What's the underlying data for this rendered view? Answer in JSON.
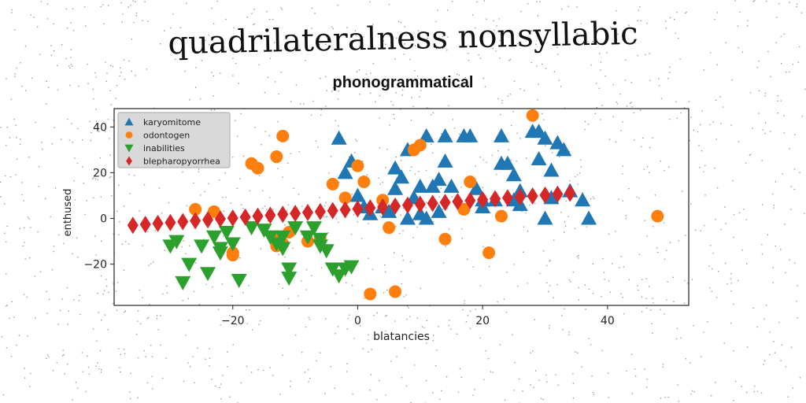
{
  "title": "quadrilateralness nonsyllabic",
  "subtitle": "phonogrammatical",
  "chart_data": {
    "type": "scatter",
    "xlabel": "blatancies",
    "ylabel": "enthused",
    "xlim": [
      -39,
      53
    ],
    "ylim": [
      -38,
      48
    ],
    "xticks": [
      -20,
      0,
      20,
      40
    ],
    "yticks": [
      -20,
      0,
      20,
      40
    ],
    "xtick_labels": [
      "−20",
      "0",
      "20",
      "40"
    ],
    "ytick_labels": [
      "−20",
      "0",
      "20",
      "40"
    ],
    "legend_position": "top-left",
    "grid": false,
    "series": [
      {
        "name": "karyomitome",
        "marker": "triangle-up",
        "color": "#1f77b4",
        "points": [
          [
            -3,
            35
          ],
          [
            -2,
            20
          ],
          [
            -1,
            25
          ],
          [
            0,
            10
          ],
          [
            1,
            5
          ],
          [
            2,
            2
          ],
          [
            4,
            5
          ],
          [
            5,
            3
          ],
          [
            6,
            22
          ],
          [
            6,
            13
          ],
          [
            7,
            18
          ],
          [
            8,
            30
          ],
          [
            8,
            0
          ],
          [
            9,
            9
          ],
          [
            10,
            14
          ],
          [
            10,
            2
          ],
          [
            11,
            36
          ],
          [
            11,
            0
          ],
          [
            12,
            14
          ],
          [
            13,
            17
          ],
          [
            13,
            3
          ],
          [
            14,
            25
          ],
          [
            14,
            36
          ],
          [
            15,
            14
          ],
          [
            17,
            36
          ],
          [
            18,
            36
          ],
          [
            19,
            13
          ],
          [
            20,
            8
          ],
          [
            20,
            5
          ],
          [
            22,
            8
          ],
          [
            23,
            36
          ],
          [
            23,
            24
          ],
          [
            24,
            24
          ],
          [
            25,
            8
          ],
          [
            25,
            19
          ],
          [
            26,
            12
          ],
          [
            26,
            6
          ],
          [
            28,
            38
          ],
          [
            29,
            38
          ],
          [
            29,
            26
          ],
          [
            30,
            0
          ],
          [
            30,
            35
          ],
          [
            31,
            21
          ],
          [
            31,
            9
          ],
          [
            32,
            33
          ],
          [
            33,
            30
          ],
          [
            34,
            12
          ],
          [
            36,
            8
          ],
          [
            37,
            0
          ]
        ]
      },
      {
        "name": "odontogen",
        "marker": "circle",
        "color": "#ff7f0e",
        "points": [
          [
            -26,
            4
          ],
          [
            -23,
            3
          ],
          [
            -20,
            -15
          ],
          [
            -20,
            -16
          ],
          [
            -17,
            24
          ],
          [
            -16,
            22
          ],
          [
            -13,
            -8
          ],
          [
            -13,
            -12
          ],
          [
            -13,
            27
          ],
          [
            -12,
            36
          ],
          [
            -12,
            -11
          ],
          [
            -11,
            -6
          ],
          [
            -8,
            -10
          ],
          [
            -6,
            -9
          ],
          [
            -4,
            15
          ],
          [
            -2,
            9
          ],
          [
            0,
            23
          ],
          [
            1,
            16
          ],
          [
            2,
            -33
          ],
          [
            4,
            8
          ],
          [
            5,
            -4
          ],
          [
            6,
            -32
          ],
          [
            9,
            30
          ],
          [
            10,
            32
          ],
          [
            14,
            -9
          ],
          [
            17,
            4
          ],
          [
            18,
            16
          ],
          [
            21,
            -15
          ],
          [
            23,
            1
          ],
          [
            28,
            45
          ],
          [
            48,
            1
          ]
        ]
      },
      {
        "name": "inabilities",
        "marker": "triangle-down",
        "color": "#2ca02c",
        "points": [
          [
            -30,
            -12
          ],
          [
            -29,
            -10
          ],
          [
            -28,
            -28
          ],
          [
            -27,
            -20
          ],
          [
            -25,
            -12
          ],
          [
            -24,
            -24
          ],
          [
            -23,
            -8
          ],
          [
            -22,
            -15
          ],
          [
            -22,
            -13
          ],
          [
            -21,
            -6
          ],
          [
            -20,
            -11
          ],
          [
            -19,
            -27
          ],
          [
            -17,
            -4
          ],
          [
            -15,
            -5
          ],
          [
            -14,
            -8
          ],
          [
            -13,
            -11
          ],
          [
            -12,
            -13
          ],
          [
            -12,
            -8
          ],
          [
            -11,
            -26
          ],
          [
            -11,
            -22
          ],
          [
            -10,
            -4
          ],
          [
            -8,
            -8
          ],
          [
            -7,
            -4
          ],
          [
            -6,
            -9
          ],
          [
            -6,
            -12
          ],
          [
            -5,
            -14
          ],
          [
            -4,
            -22
          ],
          [
            -3,
            -25
          ],
          [
            -2,
            -22
          ],
          [
            -1,
            -21
          ]
        ]
      },
      {
        "name": "blepharopyorrhea",
        "marker": "diamond",
        "color": "#d62728",
        "points": [
          [
            -36.0,
            -3.0
          ],
          [
            -34.0,
            -2.6
          ],
          [
            -32.0,
            -2.2
          ],
          [
            -30.0,
            -1.8
          ],
          [
            -28.0,
            -1.4
          ],
          [
            -26.0,
            -1.0
          ],
          [
            -24.0,
            -0.6
          ],
          [
            -22.0,
            -0.2
          ],
          [
            -20.0,
            0.2
          ],
          [
            -18.0,
            0.6
          ],
          [
            -16.0,
            1.0
          ],
          [
            -14.0,
            1.4
          ],
          [
            -12.0,
            1.8
          ],
          [
            -10.0,
            2.2
          ],
          [
            -8.0,
            2.6
          ],
          [
            -6.0,
            3.0
          ],
          [
            -4.0,
            3.4
          ],
          [
            -2.0,
            3.8
          ],
          [
            0.0,
            4.2
          ],
          [
            2.0,
            4.6
          ],
          [
            4.0,
            5.0
          ],
          [
            6.0,
            5.4
          ],
          [
            8.0,
            5.8
          ],
          [
            10.0,
            6.2
          ],
          [
            12.0,
            6.6
          ],
          [
            14.0,
            7.0
          ],
          [
            16.0,
            7.4
          ],
          [
            18.0,
            7.8
          ],
          [
            20.0,
            8.2
          ],
          [
            22.0,
            8.6
          ],
          [
            24.0,
            9.0
          ],
          [
            26.0,
            9.4
          ],
          [
            28.0,
            9.8
          ],
          [
            30.0,
            10.2
          ],
          [
            32.0,
            10.6
          ],
          [
            34.0,
            11.0
          ]
        ]
      }
    ]
  }
}
